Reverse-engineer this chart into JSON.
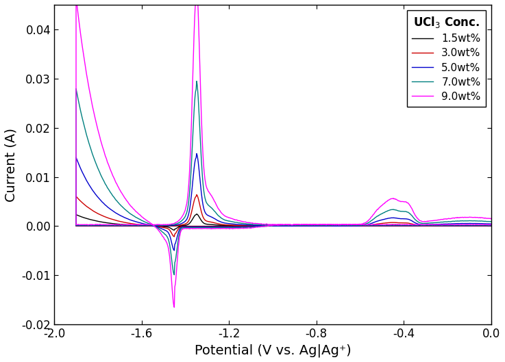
{
  "title": "",
  "xlabel": "Potential (V vs. Ag|Ag⁺)",
  "ylabel": "Current (A)",
  "xlim": [
    -2.0,
    0.0
  ],
  "ylim": [
    -0.02,
    0.045
  ],
  "xticks": [
    -2.0,
    -1.6,
    -1.2,
    -0.8,
    -0.4,
    0.0
  ],
  "yticks": [
    -0.02,
    -0.01,
    0.0,
    0.01,
    0.02,
    0.03,
    0.04
  ],
  "legend_title": "UCl$_3$ Conc.",
  "series": [
    {
      "label": "1.5wt%",
      "color": "#000000",
      "scale": 0.05
    },
    {
      "label": "3.0wt%",
      "color": "#cc0000",
      "scale": 0.13
    },
    {
      "label": "5.0wt%",
      "color": "#0000cc",
      "scale": 0.3
    },
    {
      "label": "7.0wt%",
      "color": "#008080",
      "scale": 0.6
    },
    {
      "label": "9.0wt%",
      "color": "#ff00ff",
      "scale": 1.0
    }
  ],
  "background_color": "#ffffff",
  "linewidth": 1.0,
  "fontsize_label": 14,
  "fontsize_tick": 12,
  "fontsize_legend": 11
}
